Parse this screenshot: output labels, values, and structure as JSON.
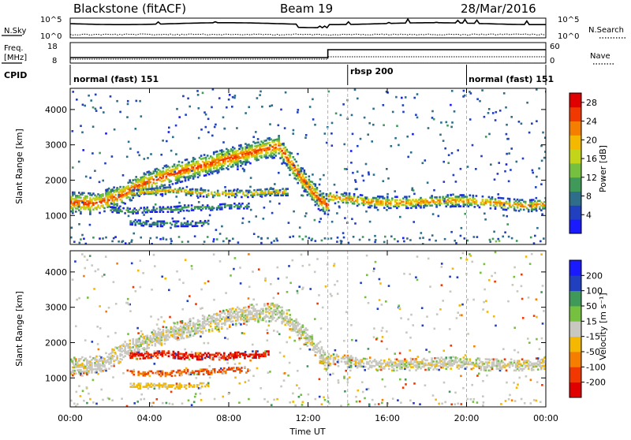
{
  "header": {
    "station": "Blackstone (fitACF)",
    "beam": "Beam 19",
    "date": "28/Mar/2016"
  },
  "panels": {
    "nsky_label": "N.Sky",
    "nsky_ticks": [
      "10^5",
      "10^0"
    ],
    "nsearch_label": "N.Search",
    "nsearch_ticks": [
      "10^5",
      "10^0"
    ],
    "freq_label": "Freq.",
    "freq_unit": "[MHz]",
    "freq_ticks": [
      "18",
      "8"
    ],
    "nave_label": "Nave",
    "nave_ticks": [
      "60",
      "0"
    ],
    "cpid_label": "CPID",
    "cpid_segments": [
      {
        "label": "normal (fast) 151",
        "start": 0,
        "end": 14
      },
      {
        "label": "rbsp 200",
        "start": 14,
        "end": 20
      },
      {
        "label": "normal (fast) 151",
        "start": 20,
        "end": 24
      }
    ]
  },
  "colors": {
    "power_scale": [
      "#1a1aff",
      "#2040c0",
      "#2f6e8a",
      "#3f9a5a",
      "#76c040",
      "#c4d418",
      "#f5b800",
      "#f57d00",
      "#f03800",
      "#e00000"
    ],
    "velocity_scale": [
      "#e00000",
      "#f03800",
      "#f57d00",
      "#f5b800",
      "#c8c8c0",
      "#76c040",
      "#3f9a5a",
      "#2040c0",
      "#1a1aff"
    ]
  },
  "chart_data": [
    {
      "type": "heatmap",
      "name": "power",
      "xlabel": "Time UT",
      "ylabel": "Slant Range [km]",
      "xlim": [
        0,
        24
      ],
      "ylim": [
        180,
        4600
      ],
      "x_ticks": [
        0,
        4,
        8,
        12,
        16,
        20,
        24
      ],
      "x_tick_labels": [
        "00:00",
        "04:00",
        "08:00",
        "12:00",
        "16:00",
        "20:00",
        "00:00"
      ],
      "y_ticks": [
        1000,
        2000,
        3000,
        4000
      ],
      "y_tick_labels": [
        "1000",
        "2000",
        "3000",
        "4000"
      ],
      "colorbar_label": "Power [dB]",
      "colorbar_ticks": [
        4,
        8,
        12,
        16,
        20,
        24,
        28
      ],
      "colorbar_tick_labels": [
        "4",
        "8",
        "12",
        "16",
        "20",
        "24",
        "28"
      ],
      "colorbar_range": [
        0,
        30
      ],
      "mode_change_lines": [
        13,
        14,
        20
      ],
      "echo_bands": [
        {
          "t": [
            0,
            1.2,
            2.5,
            3.5,
            5,
            7,
            9,
            10.5,
            11.5,
            12.5,
            13
          ],
          "range_km": [
            1400,
            1360,
            1600,
            1900,
            2200,
            2500,
            2800,
            3000,
            2200,
            1500,
            1300
          ],
          "width_km": 600,
          "peak_power": 26
        },
        {
          "t": [
            3,
            4,
            5,
            6,
            7,
            8,
            9,
            10,
            11
          ],
          "range_km": [
            1650,
            1700,
            1750,
            1700,
            1650,
            1650,
            1650,
            1700,
            1700
          ],
          "width_km": 200,
          "peak_power": 22
        },
        {
          "t": [
            2,
            3,
            4,
            5,
            6,
            7,
            8,
            9
          ],
          "range_km": [
            1200,
            1150,
            1200,
            1200,
            1250,
            1250,
            1300,
            1300
          ],
          "width_km": 140,
          "peak_power": 14
        },
        {
          "t": [
            3,
            4,
            5,
            6,
            7
          ],
          "range_km": [
            850,
            800,
            800,
            800,
            820
          ],
          "width_km": 150,
          "peak_power": 12
        },
        {
          "t": [
            13,
            14,
            15,
            16,
            17,
            18,
            19,
            20,
            21,
            22,
            23,
            24
          ],
          "range_km": [
            1550,
            1500,
            1420,
            1400,
            1400,
            1420,
            1450,
            1450,
            1400,
            1350,
            1300,
            1350
          ],
          "width_km": 320,
          "peak_power": 24
        }
      ]
    },
    {
      "type": "heatmap",
      "name": "velocity",
      "xlabel": "Time UT",
      "ylabel": "Slant Range [km]",
      "xlim": [
        0,
        24
      ],
      "ylim": [
        180,
        4600
      ],
      "x_ticks": [
        0,
        4,
        8,
        12,
        16,
        20,
        24
      ],
      "x_tick_labels": [
        "00:00",
        "04:00",
        "08:00",
        "12:00",
        "16:00",
        "20:00",
        "00:00"
      ],
      "y_ticks": [
        1000,
        2000,
        3000,
        4000
      ],
      "y_tick_labels": [
        "1000",
        "2000",
        "3000",
        "4000"
      ],
      "colorbar_label": "Velocity [m s⁻¹]",
      "colorbar_tick_labels": [
        "200",
        "100",
        "50",
        "15",
        "-15",
        "-50",
        "-100",
        "-200"
      ],
      "mode_change_lines": [
        13,
        14,
        20
      ],
      "echo_bands": [
        {
          "t": [
            0,
            1.5,
            3,
            5,
            7,
            9,
            10.5,
            12,
            13
          ],
          "range_km": [
            1350,
            1400,
            1900,
            2300,
            2600,
            2850,
            2900,
            2100,
            1400
          ],
          "width_km": 500,
          "velocity": 0
        },
        {
          "t": [
            3,
            4,
            5,
            6,
            7,
            8,
            9,
            10
          ],
          "range_km": [
            1650,
            1700,
            1700,
            1650,
            1650,
            1650,
            1700,
            1700
          ],
          "width_km": 200,
          "velocity": -200
        },
        {
          "t": [
            3,
            4,
            5,
            6,
            7,
            8,
            9
          ],
          "range_km": [
            1200,
            1150,
            1150,
            1200,
            1200,
            1250,
            1250
          ],
          "width_km": 140,
          "velocity": -100
        },
        {
          "t": [
            3,
            4,
            5,
            6,
            7
          ],
          "range_km": [
            800,
            800,
            800,
            800,
            820
          ],
          "width_km": 140,
          "velocity": -30
        },
        {
          "t": [
            13,
            14,
            15,
            16,
            17,
            18,
            19,
            20,
            21,
            22,
            23,
            24
          ],
          "range_km": [
            1550,
            1500,
            1450,
            1400,
            1400,
            1420,
            1450,
            1450,
            1400,
            1400,
            1400,
            1450
          ],
          "width_km": 320,
          "velocity": 0
        }
      ]
    }
  ]
}
